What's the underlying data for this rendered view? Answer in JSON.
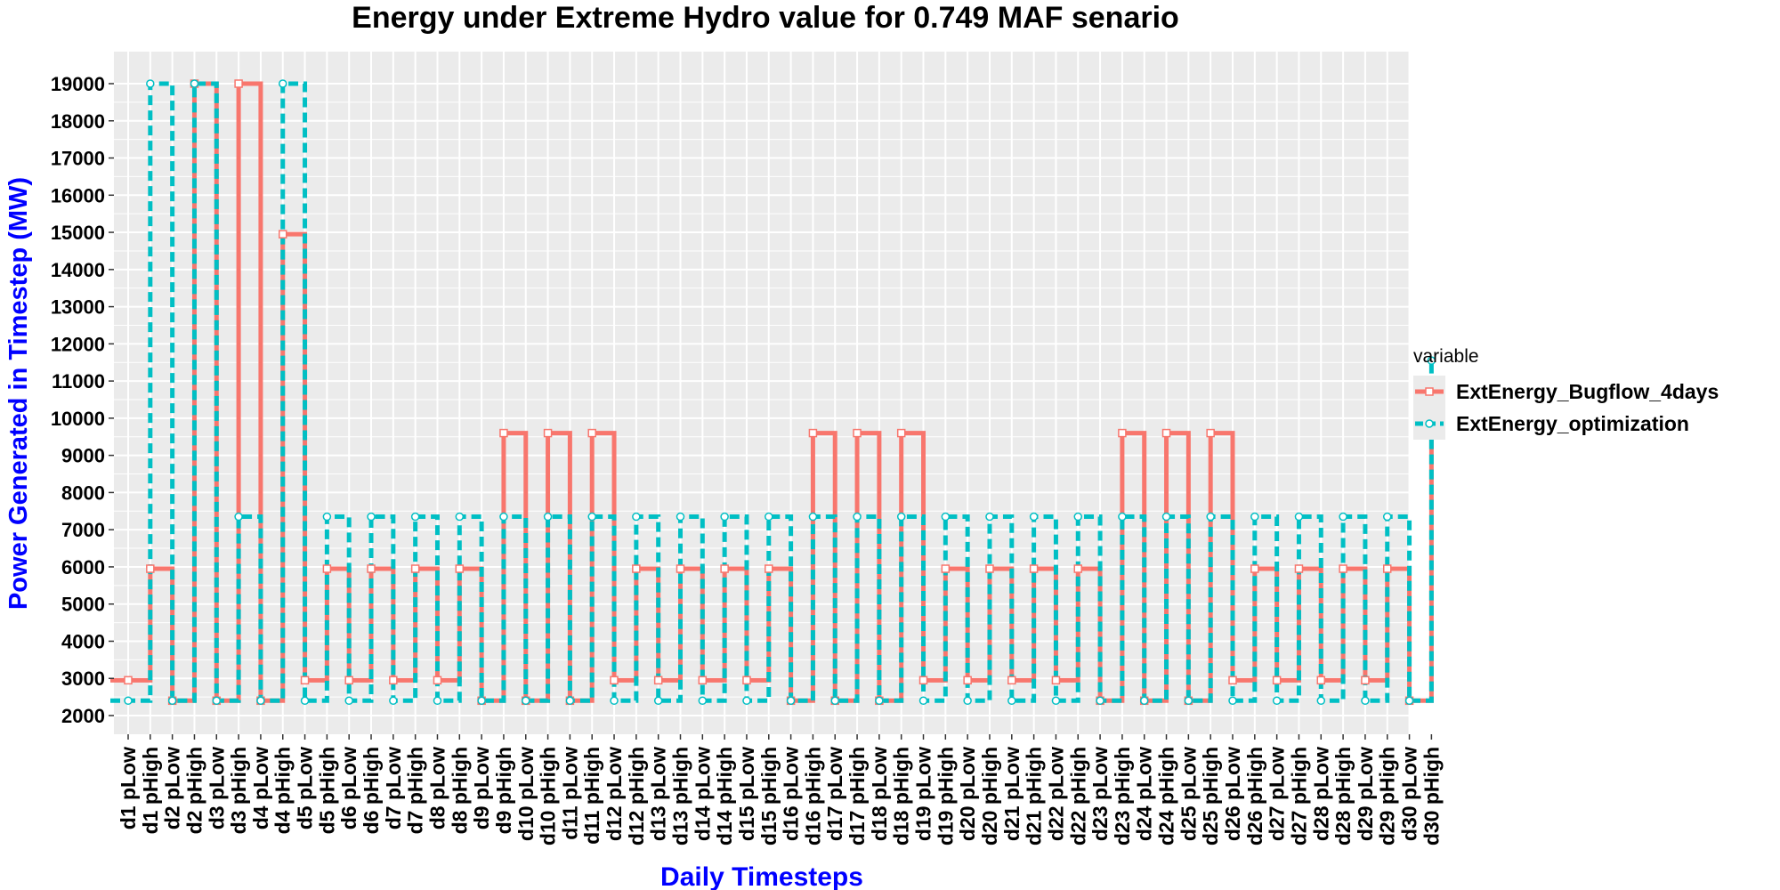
{
  "chart_data": {
    "type": "line",
    "title": "Energy under Extreme Hydro value for 0.749 MAF senario",
    "xlabel": "Daily Timesteps",
    "ylabel": "Power Generated in Timestep (MW)",
    "ylim": [
      2000,
      19000
    ],
    "yticks": [
      2000,
      3000,
      4000,
      5000,
      6000,
      7000,
      8000,
      9000,
      10000,
      11000,
      12000,
      13000,
      14000,
      15000,
      16000,
      17000,
      18000,
      19000
    ],
    "grid": true,
    "legend_position": "right",
    "legend_title": "variable",
    "step": true,
    "categories": [
      "d1 pLow",
      "d1 pHigh",
      "d2 pLow",
      "d2 pHigh",
      "d3 pLow",
      "d3 pHigh",
      "d4 pLow",
      "d4 pHigh",
      "d5 pLow",
      "d5 pHigh",
      "d6 pLow",
      "d6 pHigh",
      "d7 pLow",
      "d7 pHigh",
      "d8 pLow",
      "d8 pHigh",
      "d9 pLow",
      "d9 pHigh",
      "d10 pLow",
      "d10 pHigh",
      "d11 pLow",
      "d11 pHigh",
      "d12 pLow",
      "d12 pHigh",
      "d13 pLow",
      "d13 pHigh",
      "d14 pLow",
      "d14 pHigh",
      "d15 pLow",
      "d15 pHigh",
      "d16 pLow",
      "d16 pHigh",
      "d17 pLow",
      "d17 pHigh",
      "d18 pLow",
      "d18 pHigh",
      "d19 pLow",
      "d19 pHigh",
      "d20 pLow",
      "d20 pHigh",
      "d21 pLow",
      "d21 pHigh",
      "d22 pLow",
      "d22 pHigh",
      "d23 pLow",
      "d23 pHigh",
      "d24 pLow",
      "d24 pHigh",
      "d25 pLow",
      "d25 pHigh",
      "d26 pLow",
      "d26 pHigh",
      "d27 pLow",
      "d27 pHigh",
      "d28 pLow",
      "d28 pHigh",
      "d29 pLow",
      "d29 pHigh",
      "d30 pLow",
      "d30 pHigh"
    ],
    "series": [
      {
        "name": "ExtEnergy_Bugflow_4days",
        "color": "#f8766d",
        "line_style": "solid",
        "marker": "square",
        "values": [
          2950,
          5950,
          2400,
          19000,
          2400,
          19000,
          2400,
          14950,
          2950,
          5950,
          2950,
          5950,
          2950,
          5950,
          2950,
          5950,
          2400,
          9600,
          2400,
          9600,
          2400,
          9600,
          2950,
          5950,
          2950,
          5950,
          2950,
          5950,
          2950,
          5950,
          2400,
          9600,
          2400,
          9600,
          2400,
          9600,
          2950,
          5950,
          2950,
          5950,
          2950,
          5950,
          2950,
          5950,
          2400,
          9600,
          2400,
          9600,
          2400,
          9600,
          2950,
          5950,
          2950,
          5950,
          2950,
          5950,
          2950,
          5950,
          2400,
          9600
        ]
      },
      {
        "name": "ExtEnergy_optimization",
        "color": "#00bfc4",
        "line_style": "dashed",
        "marker": "circle",
        "values": [
          2400,
          19000,
          2400,
          19000,
          2400,
          7350,
          2400,
          19000,
          2400,
          7350,
          2400,
          7350,
          2400,
          7350,
          2400,
          7350,
          2400,
          7350,
          2400,
          7350,
          2400,
          7350,
          2400,
          7350,
          2400,
          7350,
          2400,
          7350,
          2400,
          7350,
          2400,
          7350,
          2400,
          7350,
          2400,
          7350,
          2400,
          7350,
          2400,
          7350,
          2400,
          7350,
          2400,
          7350,
          2400,
          7350,
          2400,
          7350,
          2400,
          7350,
          2400,
          7350,
          2400,
          7350,
          2400,
          7350,
          2400,
          7350,
          2400,
          11550
        ]
      }
    ]
  }
}
